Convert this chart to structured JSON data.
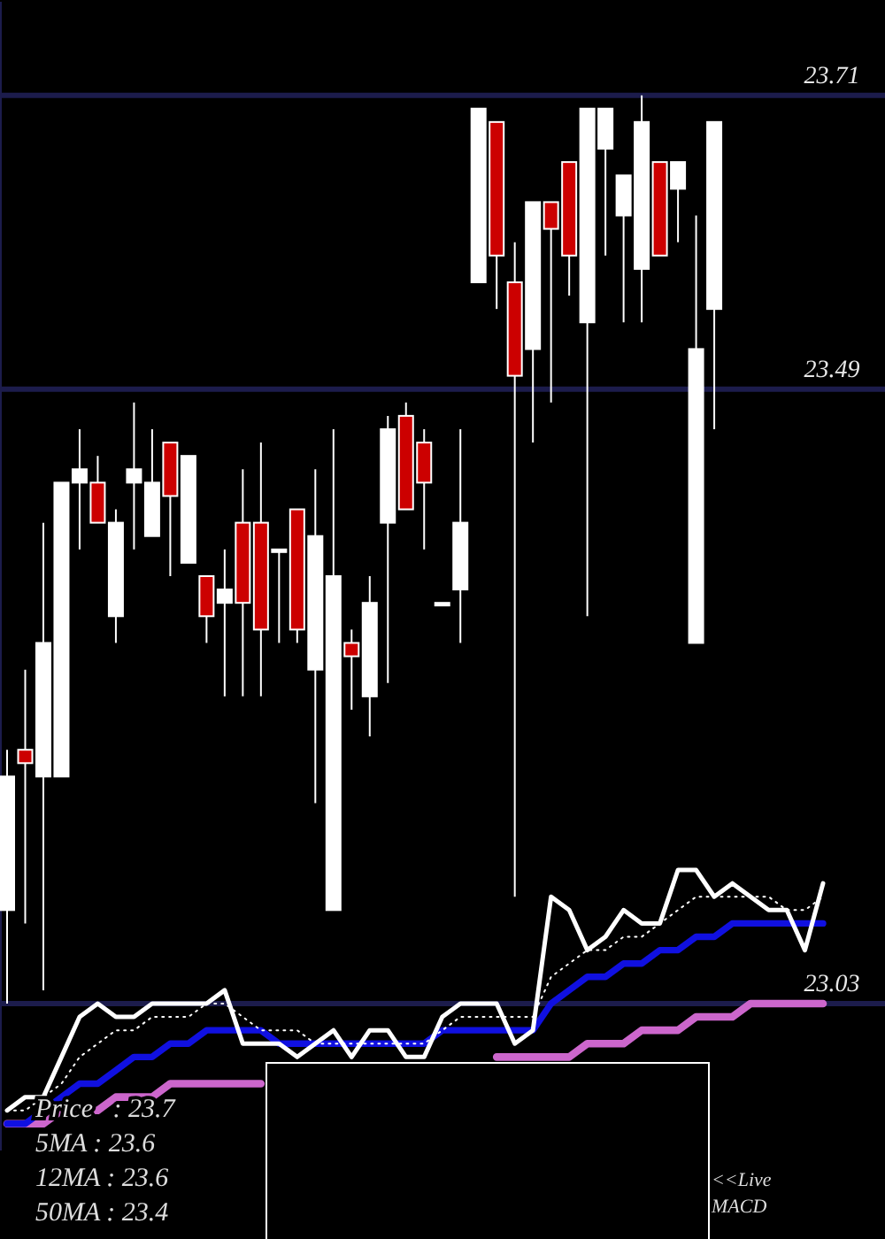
{
  "chart_data": {
    "type": "candlestick",
    "categories": [
      null,
      null,
      null,
      null,
      null,
      null,
      null,
      null,
      null,
      null,
      null,
      null,
      null,
      null,
      null,
      null,
      null,
      null,
      null,
      null,
      null,
      null,
      null,
      null,
      null,
      null,
      null,
      null,
      null,
      null,
      null,
      null,
      null,
      null,
      null,
      null,
      null,
      null,
      null,
      null,
      null,
      null,
      null,
      null,
      null,
      null
    ],
    "ohlc": [
      [
        23.1,
        23.22,
        23.03,
        23.2
      ],
      [
        23.22,
        23.28,
        23.09,
        23.21
      ],
      [
        23.2,
        23.39,
        23.04,
        23.3
      ],
      [
        23.2,
        23.42,
        23.2,
        23.42
      ],
      [
        23.42,
        23.46,
        23.37,
        23.43
      ],
      [
        23.42,
        23.44,
        23.39,
        23.39
      ],
      [
        23.32,
        23.4,
        23.3,
        23.39
      ],
      [
        23.42,
        23.48,
        23.37,
        23.43
      ],
      [
        23.38,
        23.46,
        23.38,
        23.42
      ],
      [
        23.45,
        23.45,
        23.35,
        23.41
      ],
      [
        23.36,
        23.44,
        23.36,
        23.44
      ],
      [
        23.35,
        23.35,
        23.3,
        23.32
      ],
      [
        23.33,
        23.37,
        23.26,
        23.34
      ],
      [
        23.39,
        23.43,
        23.26,
        23.33
      ],
      [
        23.39,
        23.45,
        23.26,
        23.31
      ],
      [
        23.37,
        23.37,
        23.3,
        23.37
      ],
      [
        23.4,
        23.4,
        23.3,
        23.31
      ],
      [
        23.28,
        23.43,
        23.18,
        23.38
      ],
      [
        23.1,
        23.46,
        23.1,
        23.35
      ],
      [
        23.3,
        23.31,
        23.25,
        23.29
      ],
      [
        23.26,
        23.35,
        23.23,
        23.33
      ],
      [
        23.39,
        23.47,
        23.27,
        23.46
      ],
      [
        23.47,
        23.48,
        23.4,
        23.4
      ],
      [
        23.45,
        23.46,
        23.37,
        23.42
      ],
      [
        23.33,
        23.33,
        23.33,
        23.33
      ],
      [
        23.34,
        23.46,
        23.3,
        23.39
      ],
      [
        23.57,
        23.7,
        23.57,
        23.7
      ],
      [
        23.69,
        23.69,
        23.55,
        23.59
      ],
      [
        23.57,
        23.6,
        23.11,
        23.5
      ],
      [
        23.52,
        23.63,
        23.45,
        23.63
      ],
      [
        23.63,
        23.63,
        23.48,
        23.61
      ],
      [
        23.66,
        23.66,
        23.56,
        23.59
      ],
      [
        23.54,
        23.7,
        23.32,
        23.7
      ],
      [
        23.67,
        23.7,
        23.59,
        23.7
      ],
      [
        23.62,
        23.65,
        23.54,
        23.65
      ],
      [
        23.58,
        23.71,
        23.54,
        23.69
      ],
      [
        23.66,
        23.66,
        23.59,
        23.59
      ],
      [
        23.64,
        23.66,
        23.6,
        23.66
      ],
      [
        23.3,
        23.62,
        23.3,
        23.52
      ],
      [
        23.55,
        23.69,
        23.46,
        23.69
      ],
      null,
      null,
      null,
      null,
      null,
      null
    ],
    "colors": [
      "#ffffff",
      "#cc0000",
      "#ffffff",
      "#ffffff",
      "#ffffff",
      "#cc0000",
      "#ffffff",
      "#ffffff",
      "#ffffff",
      "#cc0000",
      "#ffffff",
      "#cc0000",
      "#ffffff",
      "#cc0000",
      "#cc0000",
      "#ffffff",
      "#cc0000",
      "#ffffff",
      "#ffffff",
      "#cc0000",
      "#ffffff",
      "#ffffff",
      "#cc0000",
      "#cc0000",
      "#ffffff",
      "#ffffff",
      "#ffffff",
      "#cc0000",
      "#cc0000",
      "#ffffff",
      "#cc0000",
      "#cc0000",
      "#ffffff",
      "#ffffff",
      "#ffffff",
      "#ffffff",
      "#cc0000",
      "#ffffff",
      "#ffffff",
      "#ffffff",
      null,
      null,
      null,
      null,
      null,
      null
    ],
    "series": [
      {
        "type": "line",
        "color": "#cc66cc",
        "line_style": "solid",
        "values": [
          22.94,
          22.94,
          22.94,
          22.95,
          22.95,
          22.95,
          22.96,
          22.96,
          22.96,
          22.97,
          22.97,
          22.97,
          22.97,
          22.97,
          22.97,
          null,
          null,
          null,
          null,
          null,
          null,
          null,
          null,
          null,
          null,
          null,
          null,
          22.99,
          22.99,
          22.99,
          22.99,
          22.99,
          23.0,
          23.0,
          23.0,
          23.01,
          23.01,
          23.01,
          23.02,
          23.02,
          23.02,
          23.03,
          23.03,
          23.03,
          23.03,
          23.03
        ]
      },
      {
        "type": "line",
        "color": "#1010e0",
        "line_style": "solid",
        "values": [
          22.94,
          22.94,
          22.95,
          22.96,
          22.97,
          22.97,
          22.98,
          22.99,
          22.99,
          23.0,
          23.0,
          23.01,
          23.01,
          23.01,
          23.01,
          23.0,
          23.0,
          23.0,
          23.0,
          23.0,
          23.0,
          23.0,
          23.0,
          23.0,
          23.01,
          23.01,
          23.01,
          23.01,
          23.01,
          23.01,
          23.03,
          23.04,
          23.05,
          23.05,
          23.06,
          23.06,
          23.07,
          23.07,
          23.08,
          23.08,
          23.09,
          23.09,
          23.09,
          23.09,
          23.09,
          23.09
        ]
      },
      {
        "type": "line",
        "color": "#ffffff",
        "line_style": "dotted",
        "values": [
          22.95,
          22.95,
          22.96,
          22.97,
          22.99,
          23.0,
          23.01,
          23.01,
          23.02,
          23.02,
          23.02,
          23.03,
          23.03,
          23.02,
          23.01,
          23.01,
          23.01,
          23.0,
          23.0,
          23.0,
          23.0,
          23.0,
          23.0,
          23.0,
          23.01,
          23.02,
          23.02,
          23.02,
          23.02,
          23.02,
          23.05,
          23.06,
          23.07,
          23.07,
          23.08,
          23.08,
          23.09,
          23.1,
          23.11,
          23.11,
          23.11,
          23.11,
          23.11,
          23.1,
          23.1,
          23.11
        ]
      },
      {
        "type": "line",
        "color": "#ffffff",
        "line_style": "solid",
        "values": [
          22.95,
          22.96,
          22.96,
          22.99,
          23.02,
          23.03,
          23.02,
          23.02,
          23.03,
          23.03,
          23.03,
          23.03,
          23.04,
          23.0,
          23.0,
          23.0,
          22.99,
          23.0,
          23.01,
          22.99,
          23.01,
          23.01,
          22.99,
          22.99,
          23.02,
          23.03,
          23.03,
          23.03,
          23.0,
          23.01,
          23.11,
          23.1,
          23.07,
          23.08,
          23.1,
          23.09,
          23.09,
          23.13,
          23.13,
          23.11,
          23.12,
          23.11,
          23.1,
          23.1,
          23.07,
          23.12
        ]
      }
    ],
    "ylim": [
      22.92,
      23.78
    ],
    "yticks": [
      23.03,
      23.49,
      23.71
    ],
    "grid": "y",
    "tick_labels": "y",
    "annotations": [
      "Price   : 23.7",
      "5MA : 23.6",
      "12MA : 23.6",
      "50MA : 23.4",
      "<<Live",
      "MACD"
    ]
  }
}
